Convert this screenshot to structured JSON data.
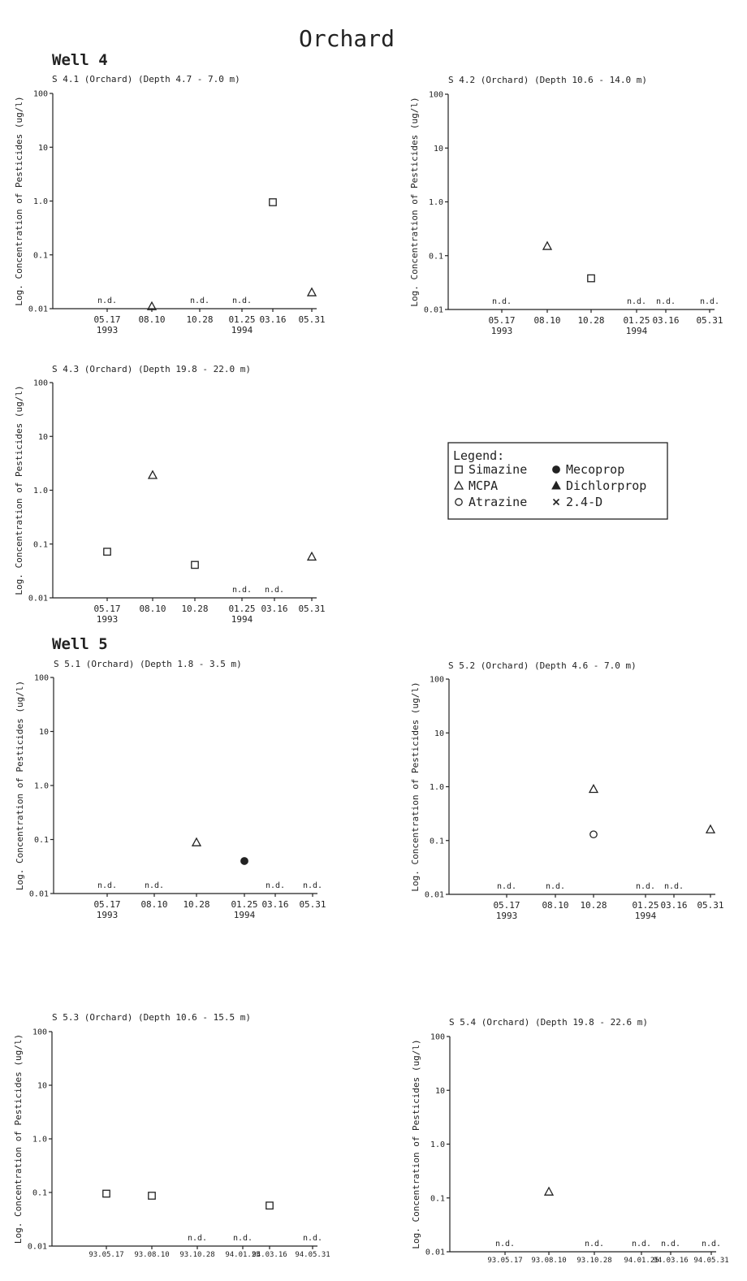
{
  "title": "Orchard",
  "sections": [
    {
      "label": "Well 4"
    },
    {
      "label": "Well 5"
    }
  ],
  "legend": {
    "title": "Legend:",
    "items": [
      {
        "name": "Simazine",
        "marker": "open-square"
      },
      {
        "name": "Mecoprop",
        "marker": "filled-circle"
      },
      {
        "name": "MCPA",
        "marker": "open-triangle"
      },
      {
        "name": "Dichlorprop",
        "marker": "filled-triangle"
      },
      {
        "name": "Atrazine",
        "marker": "open-circle"
      },
      {
        "name": "2.4-D",
        "marker": "star"
      }
    ]
  },
  "chart_data": [
    {
      "type": "scatter",
      "title": "S 4.1 (Orchard) (Depth 4.7 - 7.0 m)",
      "ylabel": "Log. Concentration of Pesticides (ug/l)",
      "yscale": "log",
      "ylim": [
        0.01,
        100
      ],
      "ytick_labels": [
        "100",
        "10",
        "1.0",
        "0.1",
        "0.01"
      ],
      "categories": [
        "05.17",
        "08.10",
        "10.28",
        "01.25",
        "03.16",
        "05.31"
      ],
      "year_labels": [
        "1993",
        "",
        "",
        "1994",
        "",
        ""
      ],
      "not_detected_label": "n.d.",
      "not_detected": [
        "05.17",
        "10.28",
        "01.25"
      ],
      "series": [
        {
          "name": "Simazine",
          "points": [
            {
              "x": "03.16",
              "y": 0.95
            }
          ]
        },
        {
          "name": "MCPA",
          "points": [
            {
              "x": "08.10",
              "y": 0.011
            },
            {
              "x": "05.31",
              "y": 0.02
            }
          ]
        }
      ]
    },
    {
      "type": "scatter",
      "title": "S 4.2 (Orchard) (Depth 10.6 - 14.0 m)",
      "ylabel": "Log. Concentration of Pesticides (ug/l)",
      "yscale": "log",
      "ylim": [
        0.01,
        100
      ],
      "ytick_labels": [
        "100",
        "10",
        "1.0",
        "0.1",
        "0.01"
      ],
      "categories": [
        "05.17",
        "08.10",
        "10.28",
        "01.25",
        "03.16",
        "05.31"
      ],
      "year_labels": [
        "1993",
        "",
        "",
        "1994",
        "",
        ""
      ],
      "not_detected_label": "n.d.",
      "not_detected": [
        "05.17",
        "01.25",
        "03.16",
        "05.31"
      ],
      "series": [
        {
          "name": "Simazine",
          "points": [
            {
              "x": "10.28",
              "y": 0.038
            }
          ]
        },
        {
          "name": "MCPA",
          "points": [
            {
              "x": "08.10",
              "y": 0.15
            }
          ]
        }
      ]
    },
    {
      "type": "scatter",
      "title": "S 4.3 (Orchard) (Depth 19.8 - 22.0 m)",
      "ylabel": "Log. Concentration of Pesticides (ug/l)",
      "yscale": "log",
      "ylim": [
        0.01,
        100
      ],
      "ytick_labels": [
        "100",
        "10",
        "1.0",
        "0.1",
        "0.01"
      ],
      "categories": [
        "05.17",
        "08.10",
        "10.28",
        "01.25",
        "03.16",
        "05.31"
      ],
      "year_labels": [
        "1993",
        "",
        "",
        "1994",
        "",
        ""
      ],
      "not_detected_label": "n.d.",
      "not_detected": [
        "01.25",
        "03.16"
      ],
      "series": [
        {
          "name": "Simazine",
          "points": [
            {
              "x": "05.17",
              "y": 0.072
            },
            {
              "x": "10.28",
              "y": 0.041
            }
          ]
        },
        {
          "name": "MCPA",
          "points": [
            {
              "x": "08.10",
              "y": 1.9
            },
            {
              "x": "05.31",
              "y": 0.058
            }
          ]
        }
      ]
    },
    {
      "type": "scatter",
      "title": "S 5.1 (Orchard) (Depth 1.8 - 3.5 m)",
      "ylabel": "Log. Concentration of Pesticides (ug/l)",
      "yscale": "log",
      "ylim": [
        0.01,
        100
      ],
      "ytick_labels": [
        "100",
        "10",
        "1.0",
        "0.1",
        "0.01"
      ],
      "categories": [
        "05.17",
        "08.10",
        "10.28",
        "01.25",
        "03.16",
        "05.31"
      ],
      "year_labels": [
        "1993",
        "",
        "",
        "1994",
        "",
        ""
      ],
      "not_detected_label": "n.d.",
      "not_detected": [
        "05.17",
        "08.10",
        "03.16",
        "05.31"
      ],
      "series": [
        {
          "name": "MCPA",
          "points": [
            {
              "x": "10.28",
              "y": 0.088
            }
          ]
        },
        {
          "name": "Mecoprop",
          "points": [
            {
              "x": "01.25",
              "y": 0.04
            }
          ]
        }
      ]
    },
    {
      "type": "scatter",
      "title": "S 5.2 (Orchard) (Depth 4.6 - 7.0 m)",
      "ylabel": "Log. Concentration of Pesticides (ug/l)",
      "yscale": "log",
      "ylim": [
        0.01,
        100
      ],
      "ytick_labels": [
        "100",
        "10",
        "1.0",
        "0.1",
        "0.01"
      ],
      "categories": [
        "05.17",
        "08.10",
        "10.28",
        "01.25",
        "03.16",
        "05.31"
      ],
      "year_labels": [
        "1993",
        "",
        "",
        "1994",
        "",
        ""
      ],
      "not_detected_label": "n.d.",
      "not_detected": [
        "05.17",
        "08.10",
        "01.25",
        "03.16"
      ],
      "series": [
        {
          "name": "MCPA",
          "points": [
            {
              "x": "10.28",
              "y": 0.9
            },
            {
              "x": "05.31",
              "y": 0.16
            }
          ]
        },
        {
          "name": "Atrazine",
          "points": [
            {
              "x": "10.28",
              "y": 0.13
            }
          ]
        }
      ]
    },
    {
      "type": "scatter",
      "title": "S 5.3 (Orchard) (Depth 10.6 - 15.5 m)",
      "ylabel": "Log. Concentration of Pesticides (ug/l)",
      "yscale": "log",
      "ylim": [
        0.01,
        100
      ],
      "ytick_labels": [
        "100",
        "10",
        "1.0",
        "0.1",
        "0.01"
      ],
      "categories": [
        "93.05.17",
        "93.08.10",
        "93.10.28",
        "94.01.25",
        "94.03.16",
        "94.05.31"
      ],
      "year_labels": [
        "",
        "",
        "",
        "",
        "",
        ""
      ],
      "not_detected_label": "n.d.",
      "not_detected": [
        "93.10.28",
        "94.01.25",
        "94.05.31"
      ],
      "series": [
        {
          "name": "Simazine",
          "points": [
            {
              "x": "93.05.17",
              "y": 0.095
            },
            {
              "x": "93.08.10",
              "y": 0.087
            },
            {
              "x": "94.03.16",
              "y": 0.057
            }
          ]
        }
      ]
    },
    {
      "type": "scatter",
      "title": "S 5.4 (Orchard) (Depth 19.8 - 22.6 m)",
      "ylabel": "Log. Concentration of Pesticides (ug/l)",
      "yscale": "log",
      "ylim": [
        0.01,
        100
      ],
      "ytick_labels": [
        "100",
        "10",
        "1.0",
        "0.1",
        "0.01"
      ],
      "categories": [
        "93.05.17",
        "93.08.10",
        "93.10.28",
        "94.01.25",
        "94.03.16",
        "94.05.31"
      ],
      "year_labels": [
        "",
        "",
        "",
        "",
        "",
        ""
      ],
      "not_detected_label": "n.d.",
      "not_detected": [
        "93.05.17",
        "93.10.28",
        "94.01.25",
        "94.03.16",
        "94.05.31"
      ],
      "series": [
        {
          "name": "MCPA",
          "points": [
            {
              "x": "93.08.10",
              "y": 0.13
            }
          ]
        }
      ]
    }
  ]
}
